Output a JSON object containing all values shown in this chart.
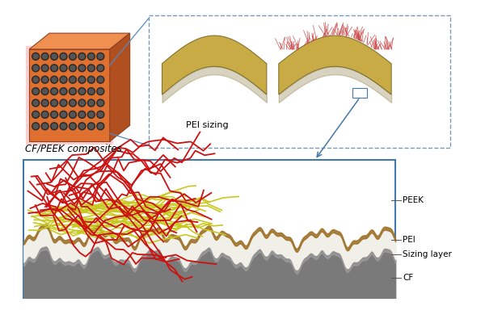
{
  "cf_peek_label": "CF/PEEK composites",
  "pei_sizing_label": "PEI sizing",
  "labels_right": [
    "PEEK",
    "PEI",
    "Sizing layer",
    "CF"
  ],
  "colors": {
    "red_chain": "#cc1111",
    "yellow_chain": "#c8c820",
    "cf_gray": "#808080",
    "sizing_brown": "#a0722a",
    "white_layer": "#f8f7f0",
    "box_border_blue": "#4477aa",
    "dashed_border": "#7799bb",
    "cube_front": "#e07030",
    "cube_top": "#f09050",
    "cube_right": "#b05020",
    "dot_dark": "#2a2a2a",
    "fiber_tan": "#c8a840",
    "fiber_shadow": "#807030"
  }
}
